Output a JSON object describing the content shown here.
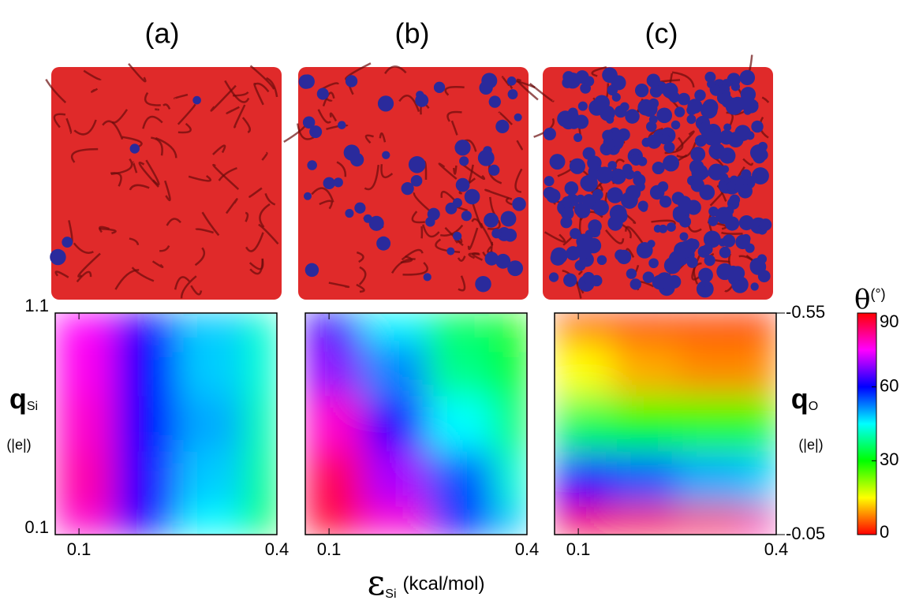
{
  "chart_data": {
    "type": "heatmap",
    "x_label": {
      "symbol": "ε",
      "sub": "Si",
      "unit": "(kcal/mol)"
    },
    "y_label": {
      "symbol": "q",
      "sub": "Si",
      "unit": "(|e|)"
    },
    "y2_label": {
      "symbol": "q",
      "sub": "O",
      "unit": "(|e|)"
    },
    "x": [
      0.1,
      0.2,
      0.3,
      0.4
    ],
    "y": [
      1.1,
      0.85,
      0.6,
      0.35,
      0.1
    ],
    "xlim": [
      0.064,
      0.4
    ],
    "xticks": [
      0.1,
      0.4
    ],
    "ylim": [
      0.1,
      1.1
    ],
    "yticks": [
      0.1,
      1.1
    ],
    "y2lim": [
      -0.05,
      -0.55
    ],
    "y2ticks": [
      -0.55,
      -0.05
    ],
    "colorbar": {
      "label": "θ",
      "unit": "(°)",
      "clim": [
        0,
        90
      ],
      "ticks": [
        0,
        30,
        60,
        90
      ]
    },
    "panels": [
      {
        "label": "(a)",
        "z": [
          [
            75,
            62,
            48,
            42
          ],
          [
            76,
            60,
            48,
            42
          ],
          [
            78,
            60,
            50,
            40
          ],
          [
            80,
            62,
            48,
            38
          ],
          [
            78,
            62,
            45,
            35
          ]
        ]
      },
      {
        "label": "(b)",
        "z": [
          [
            60,
            45,
            35,
            28
          ],
          [
            68,
            52,
            38,
            30
          ],
          [
            78,
            62,
            45,
            35
          ],
          [
            85,
            70,
            55,
            42
          ],
          [
            88,
            78,
            60,
            48
          ]
        ]
      },
      {
        "label": "(c)",
        "z": [
          [
            3,
            2,
            3,
            2
          ],
          [
            15,
            10,
            8,
            8
          ],
          [
            35,
            30,
            28,
            28
          ],
          [
            62,
            55,
            50,
            48
          ],
          [
            88,
            88,
            85,
            80
          ]
        ]
      }
    ]
  }
}
